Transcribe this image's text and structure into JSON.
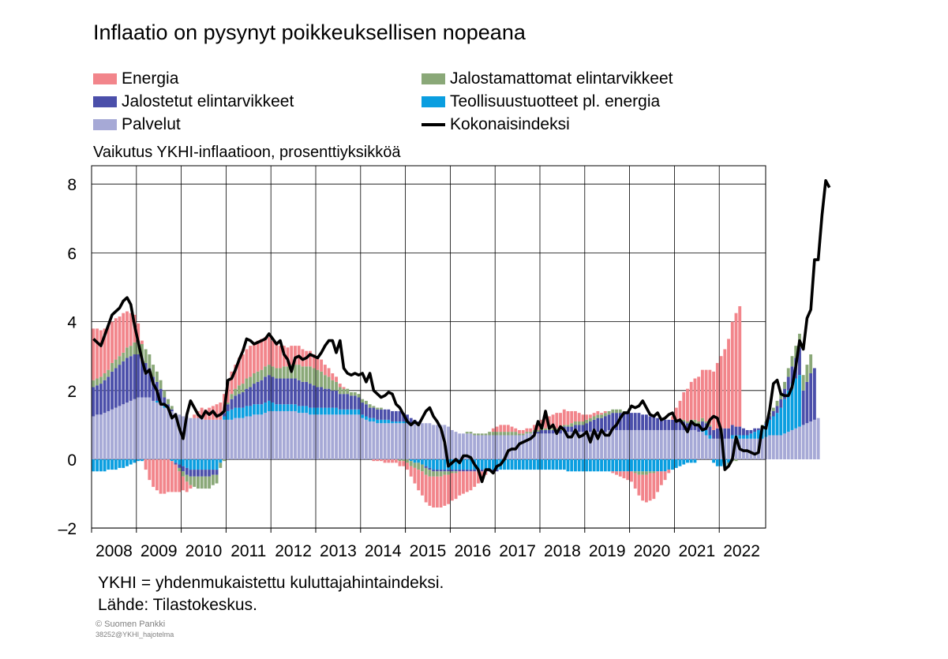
{
  "title": "Inflaatio on pysynyt poikkeuksellisen nopeana",
  "y_axis_caption": "Vaikutus YKHI-inflaatioon, prosenttiyksikköä",
  "footnote": "YKHI = yhdenmukaistettu kuluttajahintaindeksi.",
  "source": "Lähde: Tilastokeskus.",
  "copyright": "© Suomen Pankki",
  "file_id": "38252@YKHI_hajotelma",
  "legend": [
    {
      "label": "Energia",
      "color": "#f2858b",
      "kind": "bar"
    },
    {
      "label": "Jalostamattomat elintarvikkeet",
      "color": "#8aa878",
      "kind": "bar"
    },
    {
      "label": "Jalostetut elintarvikkeet",
      "color": "#4b4faa",
      "kind": "bar"
    },
    {
      "label": "Teollisuustuotteet pl. energia",
      "color": "#0a9ee0",
      "kind": "bar"
    },
    {
      "label": "Palvelut",
      "color": "#a6a9d6",
      "kind": "bar"
    },
    {
      "label": "Kokonaisindeksi",
      "color": "#000000",
      "kind": "line"
    }
  ],
  "chart_data": {
    "type": "bar",
    "stacked": true,
    "frequency": "monthly",
    "start": "2008-01",
    "x_tick_labels": [
      "2008",
      "2009",
      "2010",
      "2011",
      "2012",
      "2013",
      "2014",
      "2015",
      "2016",
      "2017",
      "2018",
      "2019",
      "2020",
      "2021",
      "2022"
    ],
    "y_ticks": [
      8,
      6,
      4,
      2,
      0,
      -2
    ],
    "y_tick_labels": [
      "8",
      "6",
      "4",
      "2",
      "0",
      "–2"
    ],
    "ylim": [
      -2,
      8.5
    ],
    "grid": true,
    "series_values": {
      "Palvelut": [
        1.25,
        1.3,
        1.3,
        1.35,
        1.4,
        1.45,
        1.5,
        1.55,
        1.6,
        1.65,
        1.7,
        1.75,
        1.8,
        1.8,
        1.8,
        1.8,
        1.7,
        1.65,
        1.6,
        1.5,
        1.45,
        1.4,
        1.35,
        1.3,
        1.25,
        1.25,
        1.2,
        1.2,
        1.2,
        1.2,
        1.15,
        1.15,
        1.15,
        1.15,
        1.15,
        1.15,
        1.15,
        1.15,
        1.2,
        1.2,
        1.2,
        1.25,
        1.25,
        1.3,
        1.3,
        1.3,
        1.35,
        1.4,
        1.4,
        1.4,
        1.4,
        1.4,
        1.4,
        1.4,
        1.4,
        1.35,
        1.35,
        1.35,
        1.3,
        1.3,
        1.3,
        1.3,
        1.3,
        1.3,
        1.3,
        1.3,
        1.3,
        1.3,
        1.3,
        1.3,
        1.3,
        1.3,
        1.2,
        1.15,
        1.1,
        1.1,
        1.05,
        1.05,
        1.05,
        1.05,
        1.05,
        1.05,
        1.05,
        1.05,
        1.05,
        1.05,
        1.05,
        1.05,
        1.05,
        1.05,
        1.05,
        1.0,
        1.0,
        1.0,
        1.0,
        0.95,
        0.85,
        0.8,
        0.75,
        0.75,
        0.75,
        0.75,
        0.7,
        0.7,
        0.7,
        0.7,
        0.7,
        0.7,
        0.7,
        0.7,
        0.7,
        0.7,
        0.7,
        0.7,
        0.7,
        0.7,
        0.75,
        0.75,
        0.75,
        0.75,
        0.75,
        0.75,
        0.75,
        0.75,
        0.75,
        0.75,
        0.8,
        0.8,
        0.8,
        0.8,
        0.8,
        0.8,
        0.8,
        0.8,
        0.8,
        0.8,
        0.8,
        0.8,
        0.85,
        0.85,
        0.85,
        0.85,
        0.85,
        0.85,
        0.85,
        0.85,
        0.85,
        0.85,
        0.85,
        0.85,
        0.85,
        0.85,
        0.85,
        0.85,
        0.85,
        0.85,
        0.85,
        0.85,
        0.85,
        0.85,
        0.85,
        0.85,
        0.8,
        0.8,
        0.7,
        0.6,
        0.6,
        0.6,
        0.6,
        0.6,
        0.6,
        0.6,
        0.6,
        0.6,
        0.6,
        0.6,
        0.6,
        0.6,
        0.6,
        0.6,
        0.65,
        0.7,
        0.7,
        0.7,
        0.7,
        0.75,
        0.8,
        0.85,
        0.9,
        0.95,
        1.0,
        1.05,
        1.1,
        1.15,
        1.2
      ],
      "Teollisuustuotteet pl. energia": [
        -0.35,
        -0.35,
        -0.35,
        -0.35,
        -0.3,
        -0.3,
        -0.3,
        -0.25,
        -0.25,
        -0.2,
        -0.15,
        -0.1,
        -0.05,
        -0.05,
        0.0,
        0.0,
        0.0,
        0.05,
        0.05,
        0.05,
        0.0,
        -0.05,
        -0.1,
        -0.15,
        -0.2,
        -0.25,
        -0.3,
        -0.3,
        -0.3,
        -0.3,
        -0.3,
        -0.3,
        -0.3,
        -0.3,
        -0.1,
        0.1,
        0.25,
        0.3,
        0.3,
        0.3,
        0.3,
        0.3,
        0.3,
        0.3,
        0.3,
        0.3,
        0.3,
        0.3,
        0.25,
        0.2,
        0.2,
        0.2,
        0.2,
        0.2,
        0.2,
        0.2,
        0.2,
        0.2,
        0.2,
        0.2,
        0.2,
        0.2,
        0.2,
        0.2,
        0.2,
        0.2,
        0.15,
        0.15,
        0.15,
        0.15,
        0.15,
        0.15,
        0.1,
        0.1,
        0.1,
        0.1,
        0.1,
        0.1,
        0.1,
        0.1,
        0.05,
        0.05,
        0.05,
        0.05,
        0.05,
        -0.05,
        -0.1,
        -0.1,
        -0.15,
        -0.2,
        -0.25,
        -0.3,
        -0.3,
        -0.3,
        -0.3,
        -0.3,
        -0.3,
        -0.3,
        -0.3,
        -0.3,
        -0.3,
        -0.3,
        -0.3,
        -0.3,
        -0.3,
        -0.3,
        -0.3,
        -0.3,
        -0.3,
        -0.3,
        -0.3,
        -0.3,
        -0.3,
        -0.3,
        -0.3,
        -0.3,
        -0.3,
        -0.3,
        -0.3,
        -0.3,
        -0.3,
        -0.3,
        -0.3,
        -0.3,
        -0.3,
        -0.3,
        -0.3,
        -0.35,
        -0.35,
        -0.35,
        -0.35,
        -0.35,
        -0.35,
        -0.35,
        -0.35,
        -0.35,
        -0.35,
        -0.35,
        -0.35,
        -0.35,
        -0.35,
        -0.35,
        -0.35,
        -0.35,
        -0.35,
        -0.35,
        -0.35,
        -0.35,
        -0.35,
        -0.35,
        -0.35,
        -0.35,
        -0.35,
        -0.35,
        -0.3,
        -0.3,
        -0.25,
        -0.2,
        -0.15,
        -0.1,
        -0.1,
        -0.1,
        0.0,
        0.1,
        0.15,
        0.1,
        -0.1,
        -0.2,
        -0.2,
        -0.2,
        -0.1,
        0.1,
        0.1,
        0.1,
        0.1,
        0.1,
        0.15,
        0.2,
        0.25,
        0.3,
        0.35,
        0.45,
        0.55,
        0.65,
        0.8,
        1.0,
        1.2,
        1.35,
        1.45,
        1.5
      ],
      "Jalostetut elintarvikkeet": [
        0.85,
        0.85,
        0.9,
        0.95,
        1.0,
        1.1,
        1.15,
        1.2,
        1.25,
        1.3,
        1.3,
        1.3,
        1.25,
        1.15,
        1.0,
        0.85,
        0.7,
        0.55,
        0.4,
        0.25,
        0.15,
        0.05,
        -0.05,
        -0.1,
        -0.15,
        -0.2,
        -0.2,
        -0.2,
        -0.2,
        -0.2,
        -0.2,
        -0.2,
        -0.15,
        -0.15,
        0.0,
        0.1,
        0.2,
        0.3,
        0.35,
        0.4,
        0.45,
        0.5,
        0.55,
        0.6,
        0.65,
        0.7,
        0.75,
        0.75,
        0.75,
        0.75,
        0.75,
        0.75,
        0.75,
        0.75,
        0.75,
        0.75,
        0.7,
        0.7,
        0.7,
        0.65,
        0.6,
        0.6,
        0.55,
        0.55,
        0.5,
        0.5,
        0.45,
        0.45,
        0.45,
        0.4,
        0.4,
        0.35,
        0.35,
        0.35,
        0.3,
        0.3,
        0.3,
        0.3,
        0.3,
        0.3,
        0.3,
        0.3,
        0.3,
        0.25,
        0.2,
        0.15,
        0.1,
        0.05,
        0.0,
        -0.05,
        -0.05,
        -0.05,
        -0.05,
        -0.05,
        -0.05,
        -0.05,
        -0.05,
        -0.05,
        -0.05,
        -0.05,
        -0.05,
        -0.05,
        -0.05,
        -0.05,
        -0.05,
        -0.05,
        -0.05,
        -0.05,
        -0.05,
        0.0,
        0.0,
        0.0,
        0.0,
        0.0,
        0.0,
        0.0,
        0.0,
        0.0,
        0.05,
        0.05,
        0.1,
        0.1,
        0.1,
        0.1,
        0.1,
        0.1,
        0.15,
        0.15,
        0.15,
        0.2,
        0.2,
        0.2,
        0.25,
        0.3,
        0.35,
        0.4,
        0.4,
        0.45,
        0.45,
        0.5,
        0.5,
        0.5,
        0.5,
        0.5,
        0.5,
        0.5,
        0.5,
        0.45,
        0.45,
        0.4,
        0.4,
        0.35,
        0.3,
        0.3,
        0.3,
        0.3,
        0.3,
        0.25,
        0.25,
        0.2,
        0.2,
        0.2,
        0.2,
        0.2,
        0.2,
        0.25,
        0.25,
        0.3,
        0.3,
        0.3,
        0.3,
        0.3,
        0.25,
        0.25,
        0.2,
        0.15,
        0.1,
        0.1,
        0.05,
        0.05,
        0.05,
        0.1,
        0.15,
        0.2,
        0.25,
        0.3,
        0.4,
        0.5,
        0.6,
        0.8,
        1.0,
        1.2,
        1.4,
        1.5
      ],
      "Jalostamattomat elintarvikkeet": [
        0.2,
        0.2,
        0.2,
        0.2,
        0.2,
        0.25,
        0.25,
        0.25,
        0.25,
        0.3,
        0.3,
        0.35,
        0.4,
        0.4,
        0.4,
        0.4,
        0.35,
        0.3,
        0.25,
        0.2,
        0.15,
        0.1,
        0.0,
        -0.1,
        -0.15,
        -0.2,
        -0.25,
        -0.3,
        -0.35,
        -0.35,
        -0.35,
        -0.35,
        -0.3,
        -0.25,
        -0.15,
        -0.05,
        0.05,
        0.15,
        0.2,
        0.25,
        0.25,
        0.3,
        0.3,
        0.3,
        0.3,
        0.3,
        0.3,
        0.3,
        0.3,
        0.3,
        0.3,
        0.35,
        0.35,
        0.4,
        0.4,
        0.45,
        0.45,
        0.45,
        0.5,
        0.5,
        0.5,
        0.45,
        0.4,
        0.35,
        0.3,
        0.25,
        0.2,
        0.15,
        0.15,
        0.1,
        0.1,
        0.1,
        0.1,
        0.1,
        0.1,
        0.05,
        0.05,
        0.05,
        0.0,
        0.0,
        0.0,
        0.0,
        -0.05,
        -0.05,
        -0.1,
        -0.15,
        -0.15,
        -0.2,
        -0.2,
        -0.2,
        -0.2,
        -0.15,
        -0.15,
        -0.15,
        -0.1,
        -0.1,
        -0.05,
        -0.05,
        0.0,
        0.0,
        0.05,
        0.05,
        0.05,
        0.05,
        0.05,
        0.05,
        0.1,
        0.1,
        0.1,
        0.1,
        0.1,
        0.1,
        0.1,
        0.1,
        0.05,
        0.05,
        0.05,
        0.05,
        0.05,
        0.05,
        0.05,
        0.05,
        0.05,
        0.05,
        0.05,
        0.05,
        0.05,
        0.05,
        0.1,
        0.1,
        0.1,
        0.1,
        0.1,
        0.1,
        0.1,
        0.1,
        0.1,
        0.1,
        0.1,
        0.1,
        0.1,
        0.1,
        0.05,
        0.05,
        0.0,
        -0.05,
        -0.1,
        -0.1,
        -0.1,
        -0.05,
        -0.05,
        0.0,
        0.0,
        0.0,
        0.0,
        0.0,
        0.0,
        0.0,
        0.05,
        0.05,
        0.1,
        0.1,
        0.1,
        0.1,
        0.05,
        0.05,
        0.0,
        0.0,
        0.0,
        -0.05,
        -0.05,
        -0.05,
        -0.05,
        0.0,
        0.0,
        0.0,
        0.0,
        0.0,
        0.0,
        0.05,
        0.05,
        0.1,
        0.1,
        0.15,
        0.15,
        0.2,
        0.25,
        0.3,
        0.35,
        0.4,
        0.45,
        0.5,
        0.55
      ],
      "Energia": [
        1.5,
        1.45,
        1.35,
        1.3,
        1.3,
        1.2,
        1.2,
        1.15,
        1.15,
        1.05,
        0.95,
        0.8,
        0.5,
        0.1,
        -0.3,
        -0.6,
        -0.8,
        -0.9,
        -1.0,
        -1.0,
        -0.95,
        -0.9,
        -0.8,
        -0.6,
        -0.4,
        -0.3,
        -0.1,
        0.1,
        0.2,
        0.3,
        0.3,
        0.35,
        0.4,
        0.45,
        0.5,
        0.55,
        0.6,
        0.65,
        0.7,
        0.8,
        0.85,
        0.85,
        0.9,
        0.9,
        0.9,
        0.9,
        0.85,
        0.8,
        0.75,
        0.7,
        0.65,
        0.6,
        0.55,
        0.55,
        0.55,
        0.55,
        0.5,
        0.45,
        0.45,
        0.4,
        0.35,
        0.35,
        0.3,
        0.25,
        0.2,
        0.15,
        0.1,
        0.05,
        0.0,
        0.0,
        0.0,
        0.0,
        0.0,
        0.0,
        0.0,
        -0.05,
        -0.05,
        -0.05,
        -0.1,
        -0.1,
        -0.1,
        -0.1,
        -0.15,
        -0.15,
        -0.2,
        -0.3,
        -0.45,
        -0.6,
        -0.7,
        -0.8,
        -0.85,
        -0.9,
        -0.9,
        -0.9,
        -0.9,
        -0.85,
        -0.8,
        -0.75,
        -0.7,
        -0.65,
        -0.6,
        -0.55,
        -0.45,
        -0.35,
        -0.25,
        -0.1,
        0.0,
        0.1,
        0.15,
        0.2,
        0.2,
        0.2,
        0.15,
        0.1,
        0.1,
        0.1,
        0.1,
        0.1,
        0.15,
        0.2,
        0.25,
        0.3,
        0.35,
        0.4,
        0.45,
        0.45,
        0.45,
        0.4,
        0.35,
        0.3,
        0.25,
        0.2,
        0.15,
        0.1,
        0.1,
        0.1,
        0.05,
        0.05,
        0.0,
        -0.05,
        -0.1,
        -0.15,
        -0.2,
        -0.25,
        -0.3,
        -0.45,
        -0.6,
        -0.75,
        -0.8,
        -0.8,
        -0.75,
        -0.6,
        -0.4,
        -0.25,
        -0.1,
        0.1,
        0.35,
        0.6,
        0.8,
        0.95,
        1.1,
        1.2,
        1.3,
        1.4,
        1.5,
        1.6,
        1.7,
        1.9,
        2.1,
        2.3,
        2.6,
        3.0,
        3.3,
        3.5
      ]
    },
    "total": [
      3.5,
      3.4,
      3.3,
      3.6,
      3.9,
      4.2,
      4.3,
      4.4,
      4.6,
      4.7,
      4.5,
      3.9,
      3.4,
      2.9,
      2.5,
      2.6,
      2.2,
      2.0,
      1.6,
      1.6,
      1.5,
      1.2,
      1.3,
      0.9,
      0.6,
      1.3,
      1.7,
      1.5,
      1.3,
      1.2,
      1.4,
      1.3,
      1.4,
      1.25,
      1.3,
      1.4,
      2.3,
      2.35,
      2.6,
      2.9,
      3.15,
      3.5,
      3.45,
      3.35,
      3.4,
      3.45,
      3.5,
      3.65,
      3.5,
      3.35,
      3.45,
      3.05,
      2.9,
      2.55,
      2.95,
      3.0,
      2.9,
      2.95,
      3.05,
      3.0,
      2.95,
      3.1,
      3.3,
      3.45,
      3.45,
      3.1,
      3.45,
      2.65,
      2.5,
      2.45,
      2.5,
      2.45,
      2.5,
      2.25,
      2.5,
      2.0,
      1.9,
      1.8,
      1.85,
      1.95,
      1.9,
      1.6,
      1.5,
      1.3,
      1.1,
      1.0,
      1.1,
      1.0,
      1.2,
      1.4,
      1.5,
      1.25,
      1.1,
      0.9,
      0.5,
      -0.2,
      -0.1,
      0.0,
      -0.1,
      0.1,
      0.1,
      0.05,
      -0.15,
      -0.3,
      -0.65,
      -0.3,
      -0.3,
      -0.4,
      -0.2,
      -0.15,
      0.0,
      0.25,
      0.3,
      0.3,
      0.45,
      0.5,
      0.55,
      0.6,
      0.7,
      1.1,
      0.9,
      1.4,
      0.9,
      1.0,
      0.75,
      0.95,
      0.85,
      0.65,
      0.65,
      0.85,
      0.65,
      0.7,
      0.8,
      0.5,
      0.85,
      0.6,
      0.85,
      0.7,
      0.7,
      0.9,
      1.0,
      1.2,
      1.35,
      1.35,
      1.55,
      1.5,
      1.55,
      1.7,
      1.5,
      1.3,
      1.25,
      1.35,
      1.15,
      1.2,
      1.3,
      1.35,
      1.1,
      1.15,
      1.0,
      0.8,
      1.1,
      1.0,
      1.0,
      0.85,
      0.9,
      1.15,
      1.25,
      1.2,
      0.85,
      -0.3,
      -0.2,
      0.0,
      0.65,
      0.3,
      0.25,
      0.25,
      0.2,
      0.15,
      0.2,
      0.95,
      0.9,
      1.45,
      2.2,
      2.3,
      1.9,
      1.85,
      1.85,
      2.1,
      2.7,
      3.45,
      3.2,
      4.1,
      4.35,
      5.8,
      5.8,
      7.1,
      8.1,
      7.9
    ]
  }
}
